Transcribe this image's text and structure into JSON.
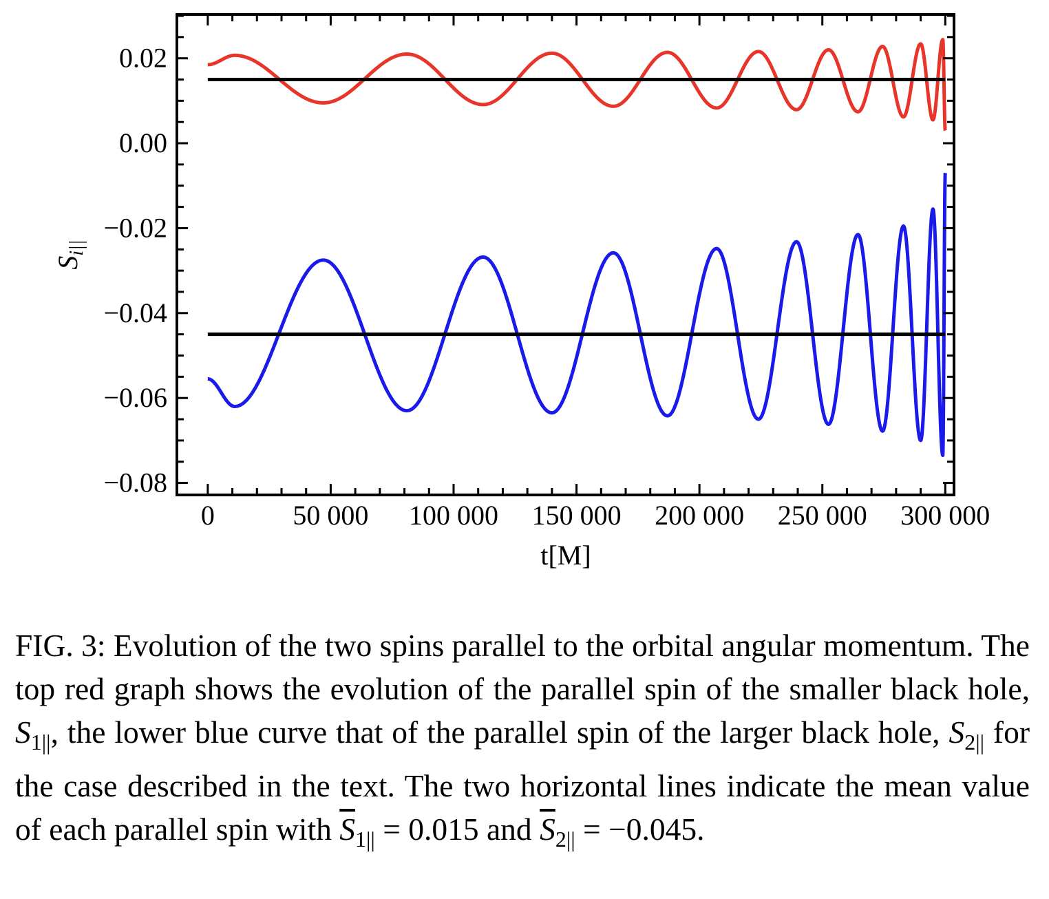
{
  "chart_data": {
    "type": "line",
    "title": "",
    "xlabel": "t[M]",
    "ylabel_base": "S",
    "ylabel_sub": "i||",
    "xlim": [
      -12000,
      303000
    ],
    "ylim": [
      -0.0825,
      0.03
    ],
    "x_ticks": [
      {
        "value": 0,
        "label": "0"
      },
      {
        "value": 50000,
        "label": "50 000"
      },
      {
        "value": 100000,
        "label": "100 000"
      },
      {
        "value": 150000,
        "label": "150 000"
      },
      {
        "value": 200000,
        "label": "200 000"
      },
      {
        "value": 250000,
        "label": "250 000"
      },
      {
        "value": 300000,
        "label": "300 000"
      }
    ],
    "y_ticks": [
      {
        "value": 0.02,
        "label": "0.02"
      },
      {
        "value": 0.0,
        "label": "0.00"
      },
      {
        "value": -0.02,
        "label": "−0.02"
      },
      {
        "value": -0.04,
        "label": "−0.04"
      },
      {
        "value": -0.06,
        "label": "−0.06"
      },
      {
        "value": -0.08,
        "label": "−0.08"
      }
    ],
    "grid": false,
    "t_end": 300000,
    "series": [
      {
        "color": "#e8352a",
        "mean": 0.015,
        "extrema": [
          [
            0,
            0.0185
          ],
          [
            11000,
            0.0207
          ],
          [
            47000,
            0.0095
          ],
          [
            81000,
            0.021
          ],
          [
            112000,
            0.0091
          ],
          [
            140000,
            0.0212
          ],
          [
            165000,
            0.0087
          ],
          [
            187000,
            0.0214
          ],
          [
            207000,
            0.0083
          ],
          [
            224000,
            0.0216
          ],
          [
            239500,
            0.0079
          ],
          [
            252500,
            0.022
          ],
          [
            264500,
            0.0074
          ],
          [
            274500,
            0.0228
          ],
          [
            283000,
            0.0062
          ],
          [
            290000,
            0.0234
          ],
          [
            295000,
            0.0055
          ],
          [
            299000,
            0.0244
          ],
          [
            300000,
            0.003
          ]
        ]
      },
      {
        "color": "#1a1aeb",
        "mean": -0.045,
        "extrema": [
          [
            0,
            -0.0555
          ],
          [
            11000,
            -0.062
          ],
          [
            47000,
            -0.0275
          ],
          [
            81000,
            -0.063
          ],
          [
            112000,
            -0.0268
          ],
          [
            140000,
            -0.0635
          ],
          [
            165000,
            -0.0258
          ],
          [
            187000,
            -0.0642
          ],
          [
            207000,
            -0.0248
          ],
          [
            224000,
            -0.065
          ],
          [
            239500,
            -0.0232
          ],
          [
            252500,
            -0.0662
          ],
          [
            264500,
            -0.0215
          ],
          [
            274500,
            -0.0678
          ],
          [
            283000,
            -0.0195
          ],
          [
            290000,
            -0.07
          ],
          [
            295000,
            -0.0155
          ],
          [
            299000,
            -0.0735
          ],
          [
            300000,
            -0.007
          ]
        ]
      },
      {
        "color": "#000000",
        "values": [
          [
            0,
            0.015
          ],
          [
            300000,
            0.015
          ]
        ]
      },
      {
        "color": "#000000",
        "values": [
          [
            0,
            -0.045
          ],
          [
            300000,
            -0.045
          ]
        ]
      }
    ]
  },
  "caption": {
    "lead": "FIG. 3: Evolution of the two spins parallel to the orbital angular momentum. The top red graph shows the evolution of the parallel spin of the smaller black hole,",
    "s1_sym": "S",
    "s1_sub": "1||",
    "mid": ", the lower blue curve that of the parallel spin of the larger black hole,",
    "s2_sym": "S",
    "s2_sub": "2||",
    "tail": " for the case described in the text. The two horizontal lines indicate the mean value of each parallel spin with",
    "m1_sym": "S",
    "m1_sub": "1||",
    "m1_eq": " = 0.015 and ",
    "m2_sym": "S",
    "m2_sub": "2||",
    "m2_eq": " = −0.045."
  }
}
